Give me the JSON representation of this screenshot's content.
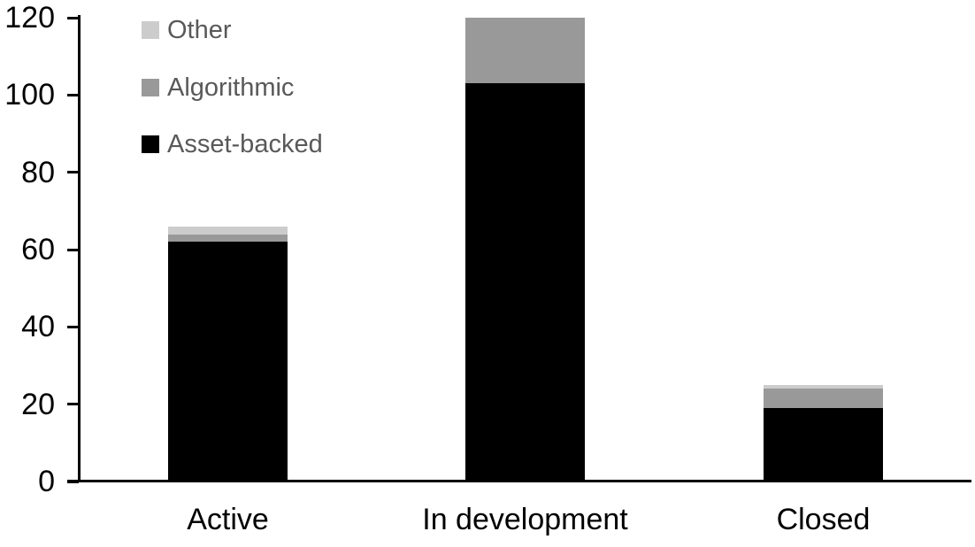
{
  "chart_data": {
    "type": "bar",
    "stacked": true,
    "title": "",
    "xlabel": "",
    "ylabel": "",
    "categories": [
      "Active",
      "In development",
      "Closed"
    ],
    "series": [
      {
        "name": "Asset-backed",
        "values": [
          62,
          103,
          19
        ],
        "color": "#000000"
      },
      {
        "name": "Algorithmic",
        "values": [
          2,
          17,
          5
        ],
        "color": "#999999"
      },
      {
        "name": "Other",
        "values": [
          2,
          0,
          1
        ],
        "color": "#cccccc"
      }
    ],
    "ylim": [
      0,
      120
    ],
    "y_ticks": [
      "0",
      "20",
      "40",
      "60",
      "80",
      "100",
      "120"
    ],
    "grid": false,
    "legend_position": "top-left",
    "legend_text_color": "#595959",
    "axis_color": "#000000"
  }
}
